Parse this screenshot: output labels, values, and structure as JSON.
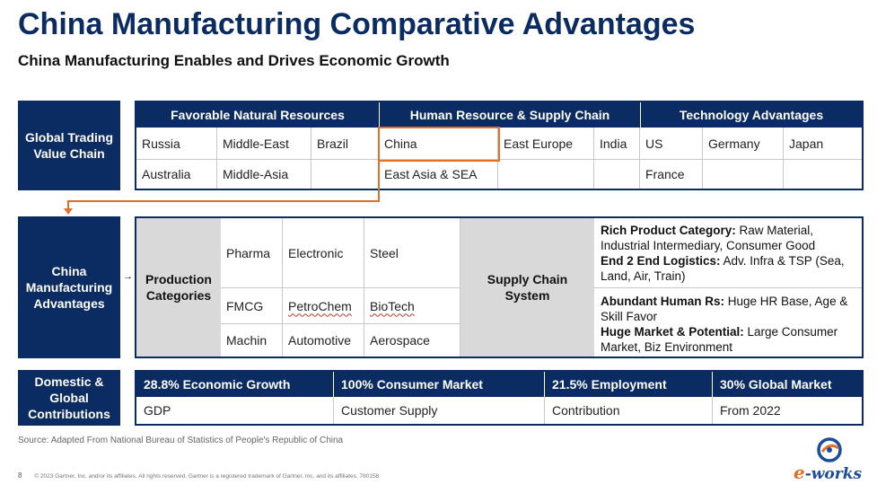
{
  "header": {
    "title": "China Manufacturing Comparative Advantages",
    "subtitle": "China Manufacturing Enables and Drives Economic Growth"
  },
  "value_chain": {
    "label": "Global Trading Value Chain",
    "groups": [
      "Favorable Natural Resources",
      "Human Resource & Supply Chain",
      "Technology Advantages"
    ],
    "rows": [
      [
        "Russia",
        "Middle-East",
        "Brazil",
        "China",
        "East Europe",
        "India",
        "US",
        "Germany",
        "Japan"
      ],
      [
        "Australia",
        "Middle-Asia",
        "",
        "East Asia & SEA",
        "",
        "",
        "France",
        "",
        ""
      ]
    ]
  },
  "manufacturing": {
    "label": "China Manufacturing Advantages",
    "production_label": "Production Categories",
    "categories": [
      [
        "Pharma",
        "Electronic",
        "Steel"
      ],
      [
        "FMCG",
        "PetroChem",
        "BioTech"
      ],
      [
        "Machin",
        "Automotive",
        "Aerospace"
      ]
    ],
    "supply_chain_label": "Supply Chain System",
    "advantages": [
      {
        "head": "Rich Product Category:",
        "text": " Raw Material, Industrial Intermediary, Consumer Good"
      },
      {
        "head": "End 2 End Logistics:",
        "text": " Adv. Infra & TSP (Sea, Land, Air, Train)"
      },
      {
        "head": "Abundant Human Rs:",
        "text": " Huge HR Base, Age & Skill Favor"
      },
      {
        "head": "Huge Market & Potential:",
        "text": " Large Consumer Market, Biz Environment"
      }
    ]
  },
  "contributions": {
    "label": "Domestic & Global Contributions",
    "headers": [
      "28.8% Economic Growth",
      "100% Consumer Market",
      "21.5% Employment",
      "30% Global Market"
    ],
    "values": [
      "GDP",
      "Customer Supply",
      "Contribution",
      "From 2022"
    ]
  },
  "footer": {
    "source": "Source: Adapted From National Bureau of Statistics of People's Republic of China",
    "page_number": "8",
    "copyright": "© 2023 Gartner, Inc. and/or its affiliates. All rights reserved. Gartner is a registered trademark of Gartner, Inc. and its affiliates. 780158",
    "logo_text": "e-works",
    "logo_e": "e",
    "logo_rest": "-works"
  },
  "colors": {
    "navy": "#0b2b63",
    "orange": "#e2702b",
    "grey": "#d9d9d9"
  }
}
